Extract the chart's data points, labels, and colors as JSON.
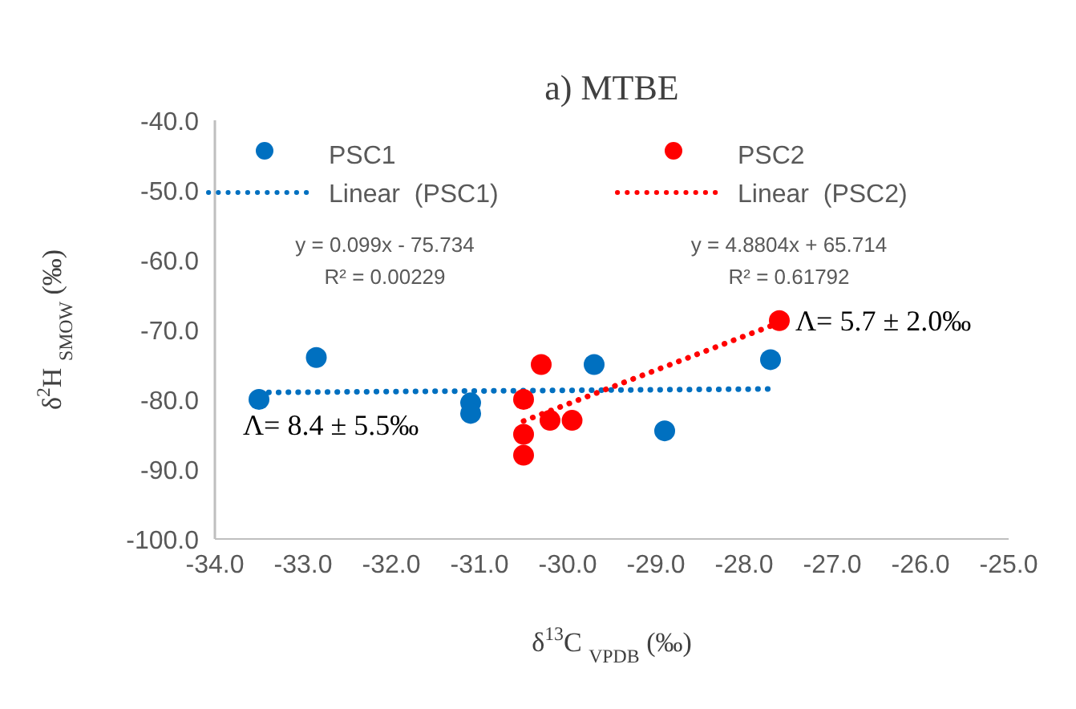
{
  "chart_data": {
    "type": "scatter",
    "title": "a) MTBE",
    "xlabel": "δ$^{13}$C $_{VPDB}$ (‰)",
    "ylabel": "δ$^{2}$H $_{SMOW}$ (‰)",
    "xlim": [
      -34,
      -25
    ],
    "xticks": [
      {
        "value": -34,
        "label": "-34.0"
      },
      {
        "value": -33,
        "label": "-33.0"
      },
      {
        "value": -32,
        "label": "-32.0"
      },
      {
        "value": -31,
        "label": "-31.0"
      },
      {
        "value": -30,
        "label": "-30.0"
      },
      {
        "value": -29,
        "label": "-29.0"
      },
      {
        "value": -28,
        "label": "-28.0"
      },
      {
        "value": -27,
        "label": "-27.0"
      },
      {
        "value": -26,
        "label": "-26.0"
      },
      {
        "value": -25,
        "label": "-25.0"
      }
    ],
    "ylim": [
      -100,
      -40
    ],
    "yticks": [
      {
        "value": -100,
        "label": "-100.0"
      },
      {
        "value": -90,
        "label": "-90.0"
      },
      {
        "value": -80,
        "label": "-80.0"
      },
      {
        "value": -70,
        "label": "-70.0"
      },
      {
        "value": -60,
        "label": "-60.0"
      },
      {
        "value": -50,
        "label": "-50.0"
      },
      {
        "value": -40,
        "label": "-40.0"
      }
    ],
    "grid": false,
    "legend": "top",
    "marker": "circle",
    "series": [
      {
        "name": "PSC1",
        "color": "#0070c0",
        "x": [
          -33.5,
          -32.85,
          -31.1,
          -31.1,
          -29.7,
          -28.9,
          -27.7
        ],
        "values": [
          -80,
          -74,
          -80.5,
          -82,
          -75,
          -84.5,
          -74.3
        ]
      },
      {
        "name": "Linear  (PSC1)",
        "type": "line",
        "line_style": "dotted",
        "marker": "none",
        "color": "#0070c0",
        "x": [
          -33.5,
          -27.7
        ],
        "values": [
          -79,
          -78.5
        ]
      },
      {
        "name": "PSC2",
        "color": "#ff0000",
        "x": [
          -30.3,
          -30.5,
          -30.2,
          -30.5,
          -30.5,
          -29.95,
          -27.6
        ],
        "values": [
          -75,
          -80,
          -83,
          -85,
          -88,
          -83,
          -68.7
        ]
      },
      {
        "name": "Linear  (PSC2)",
        "type": "line",
        "line_style": "dotted",
        "marker": "none",
        "color": "#ff0000",
        "x": [
          -30.5,
          -27.6
        ],
        "values": [
          -83.1,
          -69
        ]
      }
    ],
    "annotations": [
      "y = 0.099x - 75.734",
      "R² = 0.00229",
      "y = 4.8804x + 65.714",
      "R² = 0.61792",
      {
        "text": "Λ= 8.4 ± 5.5‰",
        "x": -33.5,
        "y": -80
      },
      {
        "text": "Λ= 5.7 ± 2.0‰",
        "x": -27.6,
        "y": -68.7
      }
    ]
  }
}
